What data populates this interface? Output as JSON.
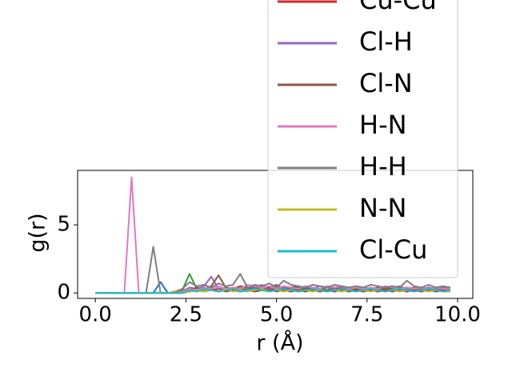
{
  "chart_data": {
    "type": "line",
    "xlabel": "r (Å)",
    "ylabel": "g(r)",
    "x": [
      0,
      0.2,
      0.4,
      0.6,
      0.8,
      1.0,
      1.2,
      1.4,
      1.6,
      1.8,
      2.0,
      2.2,
      2.4,
      2.6,
      2.8,
      3.0,
      3.2,
      3.4,
      3.6,
      3.8,
      4.0,
      4.2,
      4.4,
      4.6,
      4.8,
      5.0,
      5.2,
      5.4,
      5.6,
      5.8,
      6.0,
      6.2,
      6.4,
      6.6,
      6.8,
      7.0,
      7.2,
      7.4,
      7.6,
      7.8,
      8.0,
      8.2,
      8.4,
      8.6,
      8.8,
      9.0,
      9.2,
      9.4,
      9.6,
      9.8
    ],
    "series": [
      {
        "color": "#1f77b4",
        "values": [
          0,
          0,
          0,
          0,
          0,
          0,
          0,
          0,
          0,
          0.8,
          0,
          0.1,
          0.2,
          0.3,
          0.1,
          0.4,
          0.2,
          0.3,
          0.2,
          0.4,
          0.3,
          0.2,
          0.5,
          0.3,
          0.2,
          0.4,
          0.3,
          0.2,
          0.4,
          0.3,
          0.2,
          0.3,
          0.4,
          0.2,
          0.3,
          0.2,
          0.4,
          0.3,
          0.2,
          0.3,
          0.2,
          0.3,
          0.4,
          0.2,
          0.3,
          0.2,
          0.3,
          0.2,
          0.3,
          0.2
        ]
      },
      {
        "color": "#ff7f0e",
        "values": [
          0,
          0,
          0,
          0,
          0,
          0,
          0,
          0,
          0,
          0,
          0,
          0.1,
          0.3,
          0.2,
          0.4,
          0.2,
          0.3,
          0.1,
          0.3,
          0.2,
          0.4,
          0.2,
          0.3,
          0.2,
          0.3,
          0.2,
          0.4,
          0.3,
          0.2,
          0.3,
          0.2,
          0.3,
          0.2,
          0.3,
          0.4,
          0.2,
          0.3,
          0.2,
          0.3,
          0.2,
          0.3,
          0.2,
          0.3,
          0.2,
          0.4,
          0.2,
          0.3,
          0.2,
          0.3,
          0.2
        ]
      },
      {
        "color": "#2ca02c",
        "values": [
          0,
          0,
          0,
          0,
          0,
          0,
          0,
          0,
          0,
          0,
          0,
          0,
          0.2,
          1.4,
          0.3,
          0.4,
          0.2,
          0.3,
          0.2,
          0.3,
          0.2,
          0.3,
          0.2,
          0.4,
          0.2,
          0.3,
          0.2,
          0.3,
          0.2,
          0.3,
          0.2,
          0.3,
          0.2,
          0.3,
          0.2,
          0.3,
          0.2,
          0.3,
          0.2,
          0.3,
          0.2,
          0.3,
          0.2,
          0.3,
          0.2,
          0.3,
          0.2,
          0.3,
          0.2,
          0.2
        ]
      },
      {
        "name": "Cu-Cu",
        "color": "#d62728",
        "values": [
          0,
          0,
          0,
          0,
          0,
          0,
          0,
          0,
          0,
          0,
          0,
          0,
          0,
          0.1,
          0.2,
          0.1,
          0.2,
          0.3,
          0.1,
          0.2,
          0.1,
          0.2,
          0.1,
          0.2,
          0.3,
          0.1,
          0.2,
          0.1,
          0.2,
          0.1,
          0.2,
          0.1,
          0.2,
          0.1,
          0.2,
          0.1,
          0.2,
          0.1,
          0.2,
          0.1,
          0.2,
          0.1,
          0.2,
          0.1,
          0.2,
          0.1,
          0.2,
          0.1,
          0.2,
          0.1
        ]
      },
      {
        "name": "Cl-H",
        "color": "#9467bd",
        "values": [
          0,
          0,
          0,
          0,
          0,
          0,
          0,
          0,
          0,
          0,
          0,
          0,
          0.1,
          0.4,
          0.3,
          0.5,
          1.2,
          0.3,
          0.4,
          0.3,
          0.5,
          0.3,
          0.4,
          0.6,
          0.3,
          0.5,
          0.4,
          0.3,
          0.5,
          0.4,
          0.3,
          0.5,
          0.4,
          0.3,
          0.4,
          0.3,
          0.5,
          0.4,
          0.3,
          0.4,
          0.3,
          0.4,
          0.5,
          0.3,
          0.4,
          0.3,
          0.4,
          0.3,
          0.4,
          0.3
        ]
      },
      {
        "name": "Cl-N",
        "color": "#8c564b",
        "values": [
          0,
          0,
          0,
          0,
          0,
          0,
          0,
          0,
          0,
          0,
          0,
          0,
          0,
          0.2,
          0.4,
          0.3,
          0.5,
          1.3,
          0.4,
          0.3,
          0.5,
          0.4,
          0.3,
          0.5,
          0.4,
          0.6,
          0.3,
          0.4,
          0.5,
          0.3,
          0.4,
          0.3,
          0.5,
          0.4,
          0.3,
          0.4,
          0.3,
          0.4,
          0.3,
          0.4,
          0.3,
          0.4,
          0.3,
          0.4,
          0.3,
          0.4,
          0.3,
          0.4,
          0.3,
          0.3
        ]
      },
      {
        "name": "H-N",
        "color": "#e377c2",
        "values": [
          0,
          0,
          0,
          0,
          0,
          8.5,
          0,
          0,
          0,
          0,
          0,
          0,
          0.1,
          0.3,
          0.2,
          0.4,
          0.3,
          0.5,
          0.3,
          0.4,
          0.3,
          0.6,
          0.5,
          0.4,
          0.5,
          0.3,
          0.5,
          0.4,
          0.3,
          0.5,
          0.4,
          0.3,
          0.5,
          0.4,
          0.5,
          0.3,
          0.4,
          0.3,
          0.4,
          0.3,
          0.5,
          0.4,
          0.3,
          0.4,
          0.3,
          0.4,
          0.3,
          0.4,
          0.3,
          0.3
        ]
      },
      {
        "name": "H-H",
        "color": "#7f7f7f",
        "values": [
          0,
          0,
          0,
          0,
          0,
          0,
          0,
          0,
          3.4,
          0,
          0,
          0,
          0.3,
          0.8,
          0.5,
          0.6,
          0.4,
          0.7,
          0.5,
          0.6,
          1.4,
          0.4,
          0.6,
          0.5,
          0.7,
          0.4,
          0.9,
          0.6,
          0.5,
          0.4,
          0.6,
          0.5,
          0.4,
          0.6,
          0.5,
          0.4,
          0.5,
          0.4,
          0.6,
          0.5,
          0.4,
          0.5,
          0.4,
          0.9,
          0.5,
          0.4,
          0.6,
          0.4,
          0.5,
          0.4
        ]
      },
      {
        "name": "N-N",
        "color": "#bcbd22",
        "values": [
          0,
          0,
          0,
          0,
          0,
          0,
          0,
          0,
          0,
          0,
          0,
          0,
          0,
          0.1,
          0.2,
          0.1,
          0.2,
          0.1,
          0.3,
          0.1,
          0.2,
          0.1,
          0.2,
          0.3,
          0.1,
          0.2,
          0.1,
          0.2,
          0.1,
          0.2,
          0.1,
          0.2,
          0.1,
          0.2,
          0.1,
          0.2,
          0.1,
          0.2,
          0.1,
          0.2,
          0.1,
          0.2,
          0.1,
          0.2,
          0.1,
          0.2,
          0.1,
          0.2,
          0.1,
          0.1
        ]
      },
      {
        "name": "Cl-Cu",
        "color": "#17becf",
        "values": [
          0,
          0,
          0,
          0,
          0,
          0,
          0,
          0,
          0,
          0,
          0,
          0,
          0,
          0.2,
          0.1,
          0.3,
          0.2,
          0.1,
          0.2,
          0.3,
          0.1,
          0.2,
          0.3,
          0.2,
          0.1,
          0.2,
          0.3,
          0.2,
          0.1,
          0.2,
          0.3,
          0.2,
          0.1,
          0.2,
          0.3,
          0.2,
          0.1,
          0.2,
          0.3,
          0.2,
          0.1,
          0.2,
          0.3,
          0.2,
          0.1,
          0.2,
          0.3,
          0.2,
          0.1,
          0.2
        ]
      }
    ],
    "xlim": [
      -0.49,
      10.42
    ],
    "xticks": [
      {
        "value": 0,
        "label": "0.0"
      },
      2.5,
      {
        "value": 5,
        "label": "5.0"
      },
      7.5,
      {
        "value": 10,
        "label": "10.0"
      }
    ],
    "ylim": [
      -0.4,
      9.0
    ],
    "yticks": [
      0,
      5
    ],
    "grid": false
  }
}
